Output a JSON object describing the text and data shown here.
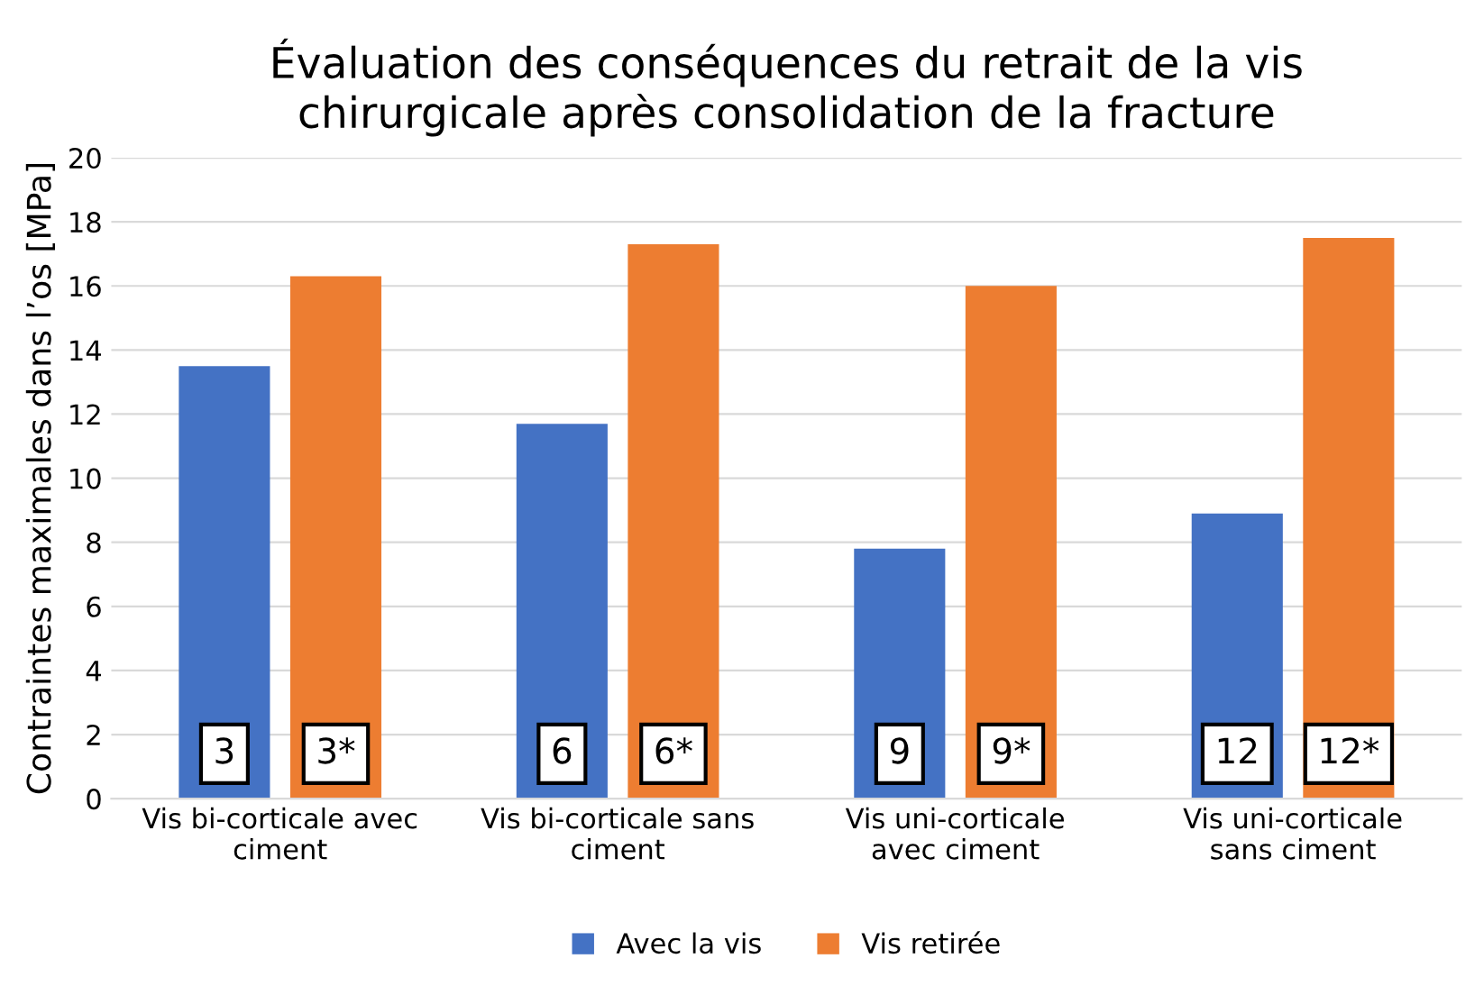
{
  "chart_data": {
    "type": "bar",
    "title": "Évaluation des conséquences du retrait de la vis\nchirurgicale après consolidation de la fracture",
    "ylabel": "Contraintes maximales dans l’os [MPa]",
    "categories": [
      "Vis bi-corticale avec\nciment",
      "Vis bi-corticale sans\nciment",
      "Vis uni-corticale\navec ciment",
      "Vis uni-corticale\nsans ciment"
    ],
    "series": [
      {
        "name": "Avec la vis",
        "color": "#4472c4",
        "values": [
          13.5,
          11.7,
          7.8,
          8.9
        ]
      },
      {
        "name": "Vis retirée",
        "color": "#ed7d31",
        "values": [
          16.3,
          17.3,
          16.0,
          17.5
        ]
      }
    ],
    "annotations": [
      "3",
      "3*",
      "6",
      "6*",
      "9",
      "9*",
      "12",
      "12*"
    ],
    "ylim": [
      0,
      20
    ],
    "yticks": [
      0,
      2,
      4,
      6,
      8,
      10,
      12,
      14,
      16,
      18,
      20
    ],
    "grid": "y",
    "legend": "bottom"
  }
}
